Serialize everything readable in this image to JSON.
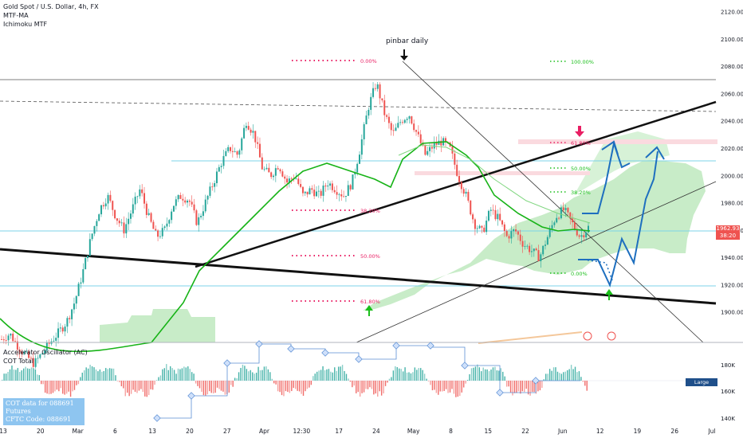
{
  "title": {
    "symbol_line": "Gold Spot / U.S. Dollar, 4h, FX",
    "indicator_1": "MTF-MA",
    "indicator_2": "Ichimoku MTF"
  },
  "oscillator": {
    "line_1": "Accelerator Oscillator (AC)",
    "line_2": "COT Total",
    "cot_note_1": "COT data for 088691 Futures",
    "cot_note_2": "CFTC Code: 088691",
    "large_traders_button": "Large Traders",
    "y_ticks": [
      "180K",
      "160K",
      "140K"
    ]
  },
  "annotations": {
    "pinbar": "pinbar daily",
    "fib_left": [
      "0.00%",
      "38.20%",
      "50.00%",
      "61.80%"
    ],
    "fib_right": [
      "100.00%",
      "61.80%",
      "50.00%",
      "38.20%",
      "0.00%"
    ]
  },
  "price_tag": {
    "price": "1962.93",
    "timer": "38:20"
  },
  "colors": {
    "bull": "#26a69a",
    "bear": "#ef5350",
    "cloud": "#c8ecc8",
    "ma": "#17b317",
    "fib_red": "#e91e63",
    "fib_green": "#1bbf1b",
    "projection": "#1e6fbf",
    "level": "#7dd3e8"
  },
  "chart_data": {
    "type": "candlestick",
    "x_ticks": [
      "13",
      "20",
      "Mar",
      "6",
      "13",
      "20",
      "27",
      "Apr",
      "12:30",
      "17",
      "24",
      "May",
      "8",
      "15",
      "22",
      "Jun",
      "12",
      "19",
      "26",
      "Jul"
    ],
    "y_ticks": [
      2120,
      2100,
      2080,
      2060,
      2040,
      2020,
      2000,
      1980,
      1960,
      1940,
      1920,
      1900
    ],
    "ylim": [
      1880,
      2125
    ],
    "last_price": 1962.93,
    "horizontal_levels": [
      2067,
      2045,
      2010,
      1962,
      1922
    ],
    "price_path": [
      [
        0,
        1880
      ],
      [
        1,
        1884
      ],
      [
        2,
        1875
      ],
      [
        3,
        1868
      ],
      [
        4,
        1862
      ],
      [
        5,
        1870
      ],
      [
        6,
        1878
      ],
      [
        7,
        1885
      ],
      [
        8,
        1893
      ],
      [
        9,
        1908
      ],
      [
        10,
        1930
      ],
      [
        11,
        1955
      ],
      [
        12,
        1975
      ],
      [
        13,
        1985
      ],
      [
        14,
        1970
      ],
      [
        15,
        1960
      ],
      [
        16,
        1975
      ],
      [
        17,
        1990
      ],
      [
        18,
        1970
      ],
      [
        19,
        1955
      ],
      [
        20,
        1960
      ],
      [
        21,
        1978
      ],
      [
        22,
        1985
      ],
      [
        23,
        1982
      ],
      [
        24,
        1965
      ],
      [
        25,
        1980
      ],
      [
        26,
        1995
      ],
      [
        27,
        2010
      ],
      [
        28,
        2020
      ],
      [
        29,
        2015
      ],
      [
        30,
        2040
      ],
      [
        31,
        2030
      ],
      [
        32,
        2005
      ],
      [
        33,
        2000
      ],
      [
        34,
        2008
      ],
      [
        35,
        1995
      ],
      [
        36,
        2000
      ],
      [
        37,
        1985
      ],
      [
        38,
        1990
      ],
      [
        39,
        1985
      ],
      [
        40,
        1995
      ],
      [
        41,
        1990
      ],
      [
        42,
        1985
      ],
      [
        43,
        1995
      ],
      [
        44,
        2020
      ],
      [
        45,
        2050
      ],
      [
        46,
        2068
      ],
      [
        47,
        2045
      ],
      [
        48,
        2030
      ],
      [
        49,
        2040
      ],
      [
        50,
        2045
      ],
      [
        51,
        2030
      ],
      [
        52,
        2015
      ],
      [
        53,
        2022
      ],
      [
        54,
        2025
      ],
      [
        55,
        2020
      ],
      [
        56,
        2000
      ],
      [
        57,
        1985
      ],
      [
        58,
        1965
      ],
      [
        59,
        1958
      ],
      [
        60,
        1975
      ],
      [
        61,
        1968
      ],
      [
        62,
        1955
      ],
      [
        63,
        1960
      ],
      [
        64,
        1950
      ],
      [
        65,
        1945
      ],
      [
        66,
        1940
      ],
      [
        67,
        1955
      ],
      [
        68,
        1970
      ],
      [
        69,
        1975
      ],
      [
        70,
        1965
      ],
      [
        71,
        1955
      ],
      [
        72,
        1962
      ]
    ]
  }
}
